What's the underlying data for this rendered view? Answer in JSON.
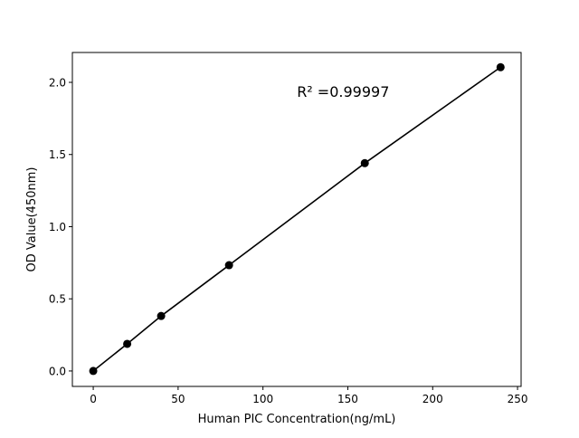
{
  "chart_data": {
    "type": "line",
    "title": "",
    "xlabel": "Human PIC Concentration(ng/mL)",
    "ylabel": "OD Value(450nm)",
    "xlim": [
      -12.3,
      252.1
    ],
    "ylim": [
      -0.107,
      2.207
    ],
    "x_ticks": [
      0,
      50,
      100,
      150,
      200,
      250
    ],
    "x_tick_labels": [
      "0",
      "50",
      "100",
      "150",
      "200",
      "250"
    ],
    "y_ticks": [
      0,
      0.5,
      1.0,
      1.5,
      2.0
    ],
    "y_tick_labels": [
      "0.0",
      "0.5",
      "1.0",
      "1.5",
      "2.0"
    ],
    "grid": false,
    "series": [
      {
        "x": [
          0,
          20,
          40,
          80,
          160,
          240
        ],
        "y": [
          0,
          0.188,
          0.381,
          0.733,
          1.44,
          2.105
        ],
        "color": "#000000",
        "marker": "circle"
      }
    ],
    "annotations": [
      {
        "text": "R² =0.99997",
        "x": 120,
        "y": 1.9
      }
    ]
  }
}
